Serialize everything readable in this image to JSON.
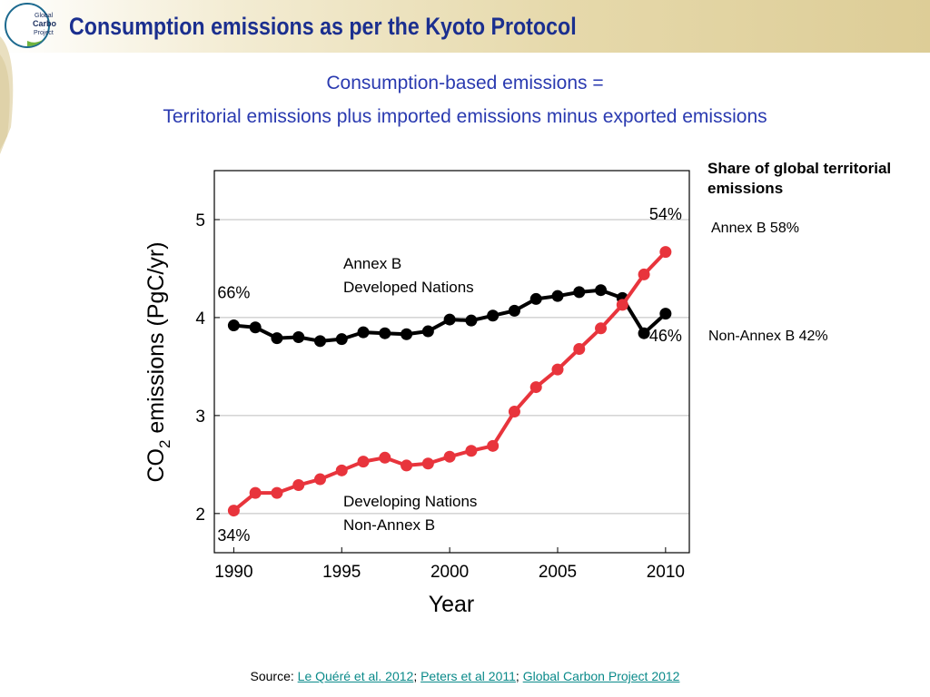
{
  "slide": {
    "title": "Consumption emissions as per the Kyoto Protocol",
    "subtitle_line1": "Consumption-based emissions =",
    "subtitle_line2": "Territorial emissions plus imported emissions minus exported emissions"
  },
  "logo": {
    "text_line1": "Global",
    "text_line2": "Carbon",
    "text_line3": "Project"
  },
  "legend_panel": {
    "title": "Share of global territorial emissions",
    "annex_b": "Annex B 58%",
    "non_annex_b": "Non-Annex B 42%"
  },
  "source": {
    "prefix": "Source: ",
    "links": [
      "Le Quéré et al. 2012",
      "Peters et al 2011",
      "Global Carbon Project 2012"
    ],
    "separator": "; "
  },
  "chart_data": {
    "type": "line",
    "xlabel": "Year",
    "ylabel_prefix": "CO",
    "ylabel_sub": "2",
    "ylabel_suffix": " emissions (PgC/yr)",
    "xlim": [
      1989.1,
      2011.1
    ],
    "ylim": [
      1.6,
      5.5
    ],
    "xticks": [
      1990,
      1995,
      2000,
      2005,
      2010
    ],
    "yticks": [
      2,
      3,
      4,
      5
    ],
    "grid": "horizontal",
    "x": [
      1990,
      1991,
      1992,
      1993,
      1994,
      1995,
      1996,
      1997,
      1998,
      1999,
      2000,
      2001,
      2002,
      2003,
      2004,
      2005,
      2006,
      2007,
      2008,
      2009,
      2010
    ],
    "series": [
      {
        "name": "Annex B Developed Nations",
        "label_line1": "Annex B",
        "label_line2": "Developed Nations",
        "color": "#000000",
        "values": [
          3.92,
          3.9,
          3.79,
          3.8,
          3.76,
          3.78,
          3.85,
          3.84,
          3.83,
          3.86,
          3.98,
          3.97,
          4.02,
          4.07,
          4.19,
          4.22,
          4.26,
          4.28,
          4.2,
          3.84,
          4.04
        ]
      },
      {
        "name": "Developing Nations Non-Annex B",
        "label_line1": "Developing Nations",
        "label_line2": "Non-Annex B",
        "color": "#e8343c",
        "values": [
          2.03,
          2.21,
          2.21,
          2.29,
          2.35,
          2.44,
          2.53,
          2.57,
          2.49,
          2.51,
          2.58,
          2.64,
          2.69,
          3.04,
          3.29,
          3.47,
          3.68,
          3.89,
          4.13,
          4.44,
          4.67
        ]
      }
    ],
    "annotations": [
      {
        "text": "66%",
        "x": 1990,
        "y": 4.2
      },
      {
        "text": "34%",
        "x": 1990,
        "y": 1.72
      },
      {
        "text": "54%",
        "x": 2010,
        "y": 5.0
      },
      {
        "text": "46%",
        "x": 2010,
        "y": 3.76
      }
    ]
  }
}
